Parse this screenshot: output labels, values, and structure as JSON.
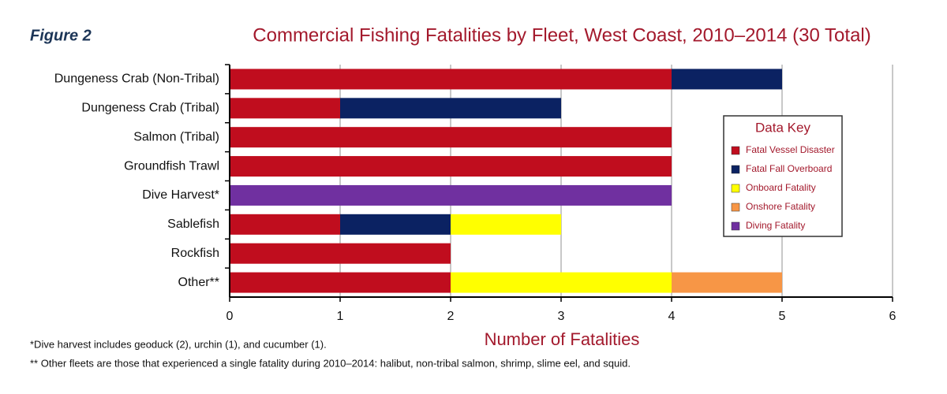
{
  "chart_data": {
    "type": "stacked_barh",
    "figure_label": "Figure 2",
    "title": "Commercial Fishing Fatalities by Fleet, West Coast, 2010–2014 (30 Total)",
    "x_label": "Number of Fatalities",
    "legend_title": "Data Key",
    "notes": [
      "*Dive harvest includes geoduck (2), urchin (1), and cucumber (1).",
      "** Other fleets are those that experienced a single fatality during 2010–2014: halibut, non-tribal salmon, shrimp, slime eel, and squid."
    ],
    "categories": [
      "Dungeness Crab (Non-Tribal)",
      "Dungeness Crab (Tribal)",
      "Salmon (Tribal)",
      "Groundfish Trawl",
      "Dive Harvest*",
      "Sablefish",
      "Rockfish",
      "Other**"
    ],
    "series": [
      {
        "name": "Fatal Vessel Disaster",
        "color": "#c00d1e",
        "values": [
          4,
          1,
          4,
          4,
          0,
          1,
          2,
          2
        ]
      },
      {
        "name": "Fatal Fall Overboard",
        "color": "#0b2262",
        "values": [
          1,
          2,
          0,
          0,
          0,
          1,
          0,
          0
        ]
      },
      {
        "name": "Onboard Fatality",
        "color": "#ffff00",
        "values": [
          0,
          0,
          0,
          0,
          0,
          1,
          0,
          2
        ]
      },
      {
        "name": "Onshore Fatality",
        "color": "#f79646",
        "values": [
          0,
          0,
          0,
          0,
          0,
          0,
          0,
          1
        ]
      },
      {
        "name": "Diving Fatality",
        "color": "#7030a0",
        "values": [
          0,
          0,
          0,
          0,
          4,
          0,
          0,
          0
        ]
      }
    ],
    "xlim": [
      0,
      6
    ],
    "xticks": [
      0,
      1,
      2,
      3,
      4,
      5,
      6
    ],
    "grid": true,
    "legend_position": "right"
  }
}
